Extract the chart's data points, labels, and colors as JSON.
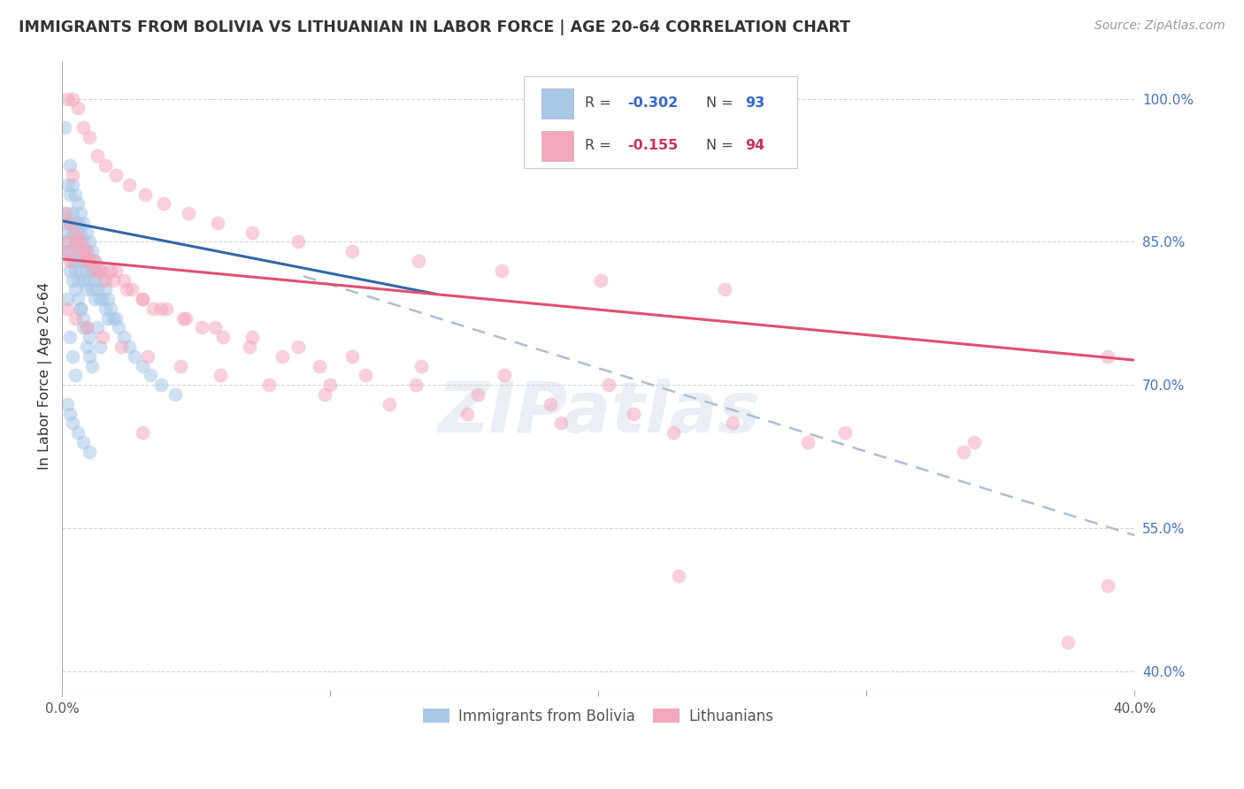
{
  "title": "IMMIGRANTS FROM BOLIVIA VS LITHUANIAN IN LABOR FORCE | AGE 20-64 CORRELATION CHART",
  "source": "Source: ZipAtlas.com",
  "ylabel": "In Labor Force | Age 20-64",
  "legend_label1": "Immigrants from Bolivia",
  "legend_label2": "Lithuanians",
  "xmin": 0.0,
  "xmax": 0.4,
  "ymin": 0.38,
  "ymax": 1.04,
  "yticks": [
    1.0,
    0.85,
    0.7,
    0.55,
    0.4
  ],
  "ytick_labels": [
    "100.0%",
    "85.0%",
    "70.0%",
    "55.0%",
    "40.0%"
  ],
  "color_blue": "#A8C8E8",
  "color_pink": "#F4A8BC",
  "color_blue_line": "#3366AA",
  "color_pink_line": "#E05070",
  "color_dashed": "#AABFD4",
  "background_color": "#FFFFFF",
  "grid_color": "#CCCCCC",
  "watermark": "ZIPatlas",
  "bolivia_x": [
    0.001,
    0.001,
    0.002,
    0.002,
    0.002,
    0.003,
    0.003,
    0.003,
    0.003,
    0.004,
    0.004,
    0.004,
    0.004,
    0.005,
    0.005,
    0.005,
    0.005,
    0.006,
    0.006,
    0.006,
    0.006,
    0.006,
    0.007,
    0.007,
    0.007,
    0.007,
    0.008,
    0.008,
    0.008,
    0.008,
    0.009,
    0.009,
    0.009,
    0.009,
    0.01,
    0.01,
    0.01,
    0.011,
    0.011,
    0.011,
    0.012,
    0.012,
    0.012,
    0.013,
    0.013,
    0.014,
    0.014,
    0.015,
    0.015,
    0.016,
    0.016,
    0.017,
    0.017,
    0.018,
    0.019,
    0.02,
    0.021,
    0.023,
    0.025,
    0.027,
    0.03,
    0.033,
    0.037,
    0.042,
    0.001,
    0.002,
    0.003,
    0.004,
    0.005,
    0.006,
    0.007,
    0.008,
    0.009,
    0.01,
    0.011,
    0.012,
    0.013,
    0.014,
    0.002,
    0.003,
    0.004,
    0.005,
    0.006,
    0.007,
    0.008,
    0.009,
    0.01,
    0.002,
    0.003,
    0.004,
    0.006,
    0.008,
    0.01
  ],
  "bolivia_y": [
    0.87,
    0.86,
    0.91,
    0.88,
    0.85,
    0.93,
    0.9,
    0.87,
    0.84,
    0.91,
    0.88,
    0.86,
    0.83,
    0.9,
    0.87,
    0.85,
    0.82,
    0.89,
    0.87,
    0.85,
    0.83,
    0.81,
    0.88,
    0.86,
    0.84,
    0.82,
    0.87,
    0.85,
    0.83,
    0.81,
    0.86,
    0.84,
    0.82,
    0.8,
    0.85,
    0.83,
    0.81,
    0.84,
    0.82,
    0.8,
    0.83,
    0.82,
    0.79,
    0.82,
    0.8,
    0.82,
    0.79,
    0.81,
    0.79,
    0.8,
    0.78,
    0.79,
    0.77,
    0.78,
    0.77,
    0.77,
    0.76,
    0.75,
    0.74,
    0.73,
    0.72,
    0.71,
    0.7,
    0.69,
    0.97,
    0.79,
    0.75,
    0.73,
    0.71,
    0.86,
    0.78,
    0.76,
    0.74,
    0.73,
    0.72,
    0.81,
    0.76,
    0.74,
    0.84,
    0.82,
    0.81,
    0.8,
    0.79,
    0.78,
    0.77,
    0.76,
    0.75,
    0.68,
    0.67,
    0.66,
    0.65,
    0.64,
    0.63
  ],
  "lithuania_x": [
    0.001,
    0.002,
    0.003,
    0.004,
    0.005,
    0.006,
    0.007,
    0.008,
    0.009,
    0.01,
    0.012,
    0.014,
    0.016,
    0.018,
    0.02,
    0.023,
    0.026,
    0.03,
    0.034,
    0.039,
    0.045,
    0.052,
    0.06,
    0.07,
    0.082,
    0.096,
    0.113,
    0.132,
    0.155,
    0.182,
    0.213,
    0.25,
    0.292,
    0.34,
    0.39,
    0.002,
    0.004,
    0.006,
    0.008,
    0.01,
    0.013,
    0.016,
    0.02,
    0.025,
    0.031,
    0.038,
    0.047,
    0.058,
    0.071,
    0.088,
    0.108,
    0.133,
    0.164,
    0.201,
    0.247,
    0.001,
    0.003,
    0.005,
    0.007,
    0.009,
    0.012,
    0.015,
    0.019,
    0.024,
    0.03,
    0.037,
    0.046,
    0.057,
    0.071,
    0.088,
    0.108,
    0.134,
    0.165,
    0.204,
    0.002,
    0.005,
    0.009,
    0.015,
    0.022,
    0.032,
    0.044,
    0.059,
    0.077,
    0.098,
    0.122,
    0.151,
    0.186,
    0.228,
    0.278,
    0.336,
    0.39,
    0.03,
    0.1,
    0.23,
    0.375
  ],
  "lithuania_y": [
    0.85,
    0.84,
    0.83,
    0.92,
    0.85,
    0.85,
    0.84,
    0.84,
    0.83,
    0.83,
    0.82,
    0.82,
    0.81,
    0.82,
    0.82,
    0.81,
    0.8,
    0.79,
    0.78,
    0.78,
    0.77,
    0.76,
    0.75,
    0.74,
    0.73,
    0.72,
    0.71,
    0.7,
    0.69,
    0.68,
    0.67,
    0.66,
    0.65,
    0.64,
    0.73,
    1.0,
    1.0,
    0.99,
    0.97,
    0.96,
    0.94,
    0.93,
    0.92,
    0.91,
    0.9,
    0.89,
    0.88,
    0.87,
    0.86,
    0.85,
    0.84,
    0.83,
    0.82,
    0.81,
    0.8,
    0.88,
    0.87,
    0.86,
    0.85,
    0.84,
    0.83,
    0.82,
    0.81,
    0.8,
    0.79,
    0.78,
    0.77,
    0.76,
    0.75,
    0.74,
    0.73,
    0.72,
    0.71,
    0.7,
    0.78,
    0.77,
    0.76,
    0.75,
    0.74,
    0.73,
    0.72,
    0.71,
    0.7,
    0.69,
    0.68,
    0.67,
    0.66,
    0.65,
    0.64,
    0.63,
    0.49,
    0.65,
    0.7,
    0.5,
    0.43
  ],
  "blue_line_x": [
    0.0,
    0.14
  ],
  "blue_line_y": [
    0.872,
    0.795
  ],
  "pink_line_x": [
    0.0,
    0.4
  ],
  "pink_line_y": [
    0.832,
    0.726
  ],
  "dash_line_x": [
    0.09,
    0.405
  ],
  "dash_line_y": [
    0.814,
    0.538
  ]
}
